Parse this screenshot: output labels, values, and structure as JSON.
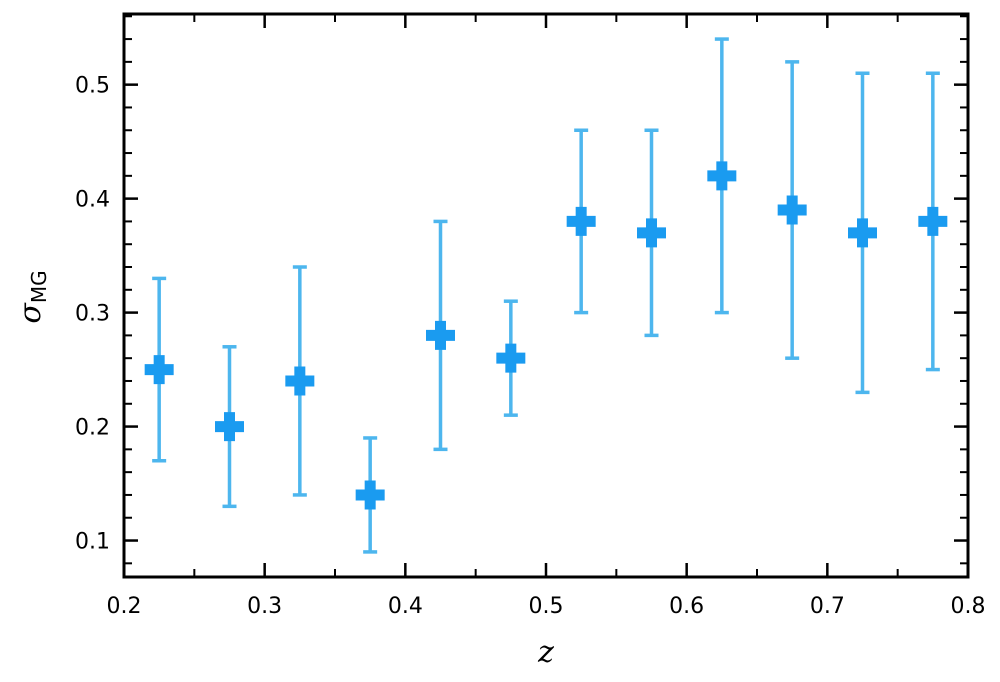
{
  "chart_data": {
    "type": "scatter",
    "title": "",
    "xlabel": "z",
    "ylabel_main": "σ",
    "ylabel_sub": "MG",
    "xlim": [
      0.2,
      0.8
    ],
    "ylim": [
      0.068,
      0.562
    ],
    "xticks": [
      0.2,
      0.3,
      0.4,
      0.5,
      0.6,
      0.7,
      0.8
    ],
    "xtick_labels": [
      "0.2",
      "0.3",
      "0.4",
      "0.5",
      "0.6",
      "0.7",
      "0.8"
    ],
    "yticks": [
      0.1,
      0.2,
      0.3,
      0.4,
      0.5
    ],
    "ytick_labels": [
      "0.1",
      "0.2",
      "0.3",
      "0.4",
      "0.5"
    ],
    "grid": false,
    "marker": "plus-filled",
    "marker_color": "#1a9bf0",
    "errorbar_color": "#4db6ee",
    "series": [
      {
        "x": [
          0.225,
          0.275,
          0.325,
          0.375,
          0.425,
          0.475,
          0.525,
          0.575,
          0.625,
          0.675,
          0.725,
          0.775
        ],
        "y": [
          0.25,
          0.2,
          0.24,
          0.14,
          0.28,
          0.26,
          0.38,
          0.37,
          0.42,
          0.39,
          0.37,
          0.38
        ],
        "y_low": [
          0.17,
          0.13,
          0.14,
          0.09,
          0.18,
          0.21,
          0.3,
          0.28,
          0.3,
          0.26,
          0.23,
          0.25
        ],
        "y_high": [
          0.33,
          0.27,
          0.34,
          0.19,
          0.38,
          0.31,
          0.46,
          0.46,
          0.54,
          0.52,
          0.51,
          0.51
        ]
      }
    ]
  }
}
